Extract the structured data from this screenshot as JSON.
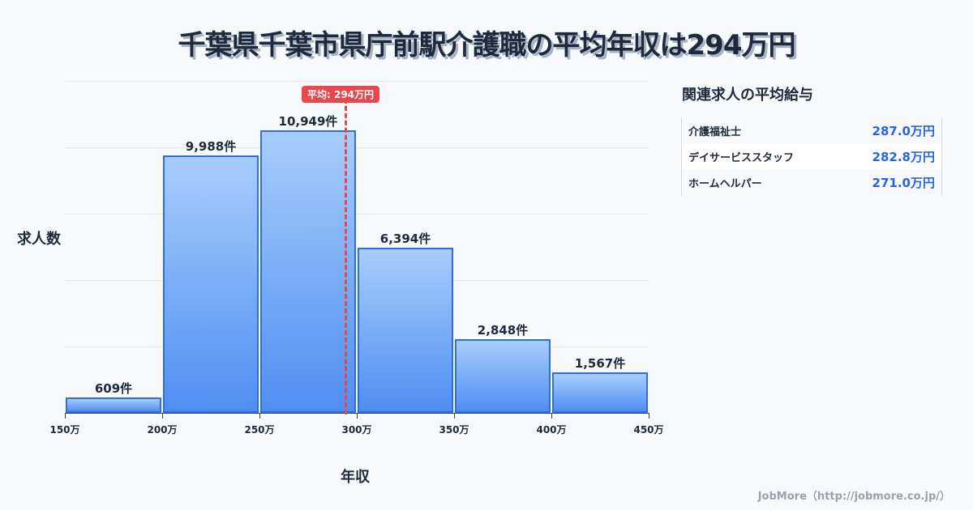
{
  "title": "千葉県千葉市県庁前駅介護職の平均年収は294万円",
  "chart_data": {
    "type": "bar",
    "title": "千葉県千葉市県庁前駅介護職の平均年収は294万円",
    "xlabel": "年収",
    "ylabel": "求人数",
    "categories": [
      "150-200万",
      "200-250万",
      "250-300万",
      "300-350万",
      "350-400万",
      "400-450万"
    ],
    "bin_edges": [
      "150万",
      "200万",
      "250万",
      "300万",
      "350万",
      "400万",
      "450万"
    ],
    "values": [
      609,
      9988,
      10949,
      6394,
      2848,
      1567
    ],
    "value_labels": [
      "609件",
      "9,988件",
      "10,949件",
      "6,394件",
      "2,848件",
      "1,567件"
    ],
    "mean": 294,
    "mean_label": "平均: 294万円",
    "grid": true
  },
  "side": {
    "title": "関連求人の平均給与",
    "rows": [
      {
        "name": "介護福祉士",
        "value": "287.0万円"
      },
      {
        "name": "デイサービススタッフ",
        "value": "282.8万円"
      },
      {
        "name": "ホームヘルパー",
        "value": "271.0万円"
      }
    ]
  },
  "footer": "JobMore（http://jobmore.co.jp/）"
}
